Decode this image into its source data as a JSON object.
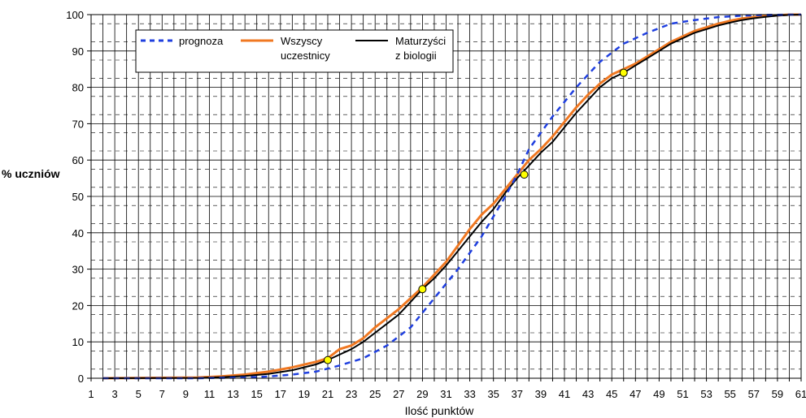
{
  "chart_data": {
    "type": "line",
    "xlabel": "Ilość punktów",
    "ylabel": "% uczniów",
    "xlim": [
      1,
      61
    ],
    "ylim": [
      0,
      100
    ],
    "x_ticks": [
      "1",
      "3",
      "5",
      "7",
      "9",
      "11",
      "13",
      "15",
      "17",
      "19",
      "21",
      "23",
      "25",
      "27",
      "29",
      "31",
      "33",
      "35",
      "37",
      "39",
      "41",
      "43",
      "45",
      "47",
      "49",
      "51",
      "53",
      "55",
      "57",
      "59",
      "61"
    ],
    "y_ticks": [
      "0",
      "10",
      "20",
      "30",
      "40",
      "50",
      "60",
      "70",
      "80",
      "90",
      "100"
    ],
    "grid": true,
    "legend_position": "top-left",
    "series": [
      {
        "name": "prognoza",
        "style": "dashed",
        "color": "#1f3fdf",
        "x": [
          2,
          10,
          14,
          16,
          18,
          20,
          22,
          24,
          26,
          28,
          30,
          32,
          34,
          36,
          37,
          38,
          40,
          42,
          44,
          46,
          48,
          50,
          52,
          54,
          56,
          58,
          60,
          61
        ],
        "y": [
          0,
          0,
          0.2,
          0.5,
          1,
          1.8,
          3.5,
          5.5,
          9,
          14,
          22,
          30,
          39,
          50,
          56,
          63,
          72,
          80,
          87,
          92,
          95,
          97.5,
          98.5,
          99.3,
          99.7,
          99.9,
          100,
          100
        ]
      },
      {
        "name": "Wszyscy uczestnicy",
        "style": "solid",
        "color": "#f07822",
        "x": [
          2,
          10,
          12,
          14,
          16,
          18,
          20,
          21,
          22,
          23,
          24,
          25,
          26,
          27,
          28,
          29,
          30,
          31,
          32,
          33,
          34,
          35,
          36,
          37,
          38,
          39,
          40,
          41,
          42,
          43,
          44,
          45,
          46,
          47,
          48,
          49,
          50,
          51,
          52,
          53,
          54,
          55,
          56,
          57,
          58,
          59,
          60,
          61
        ],
        "y": [
          0,
          0.2,
          0.5,
          1,
          1.8,
          3,
          4.5,
          5.5,
          8,
          9,
          11,
          14,
          16.5,
          19,
          22,
          25,
          28.5,
          32,
          36.5,
          41,
          45,
          48,
          52,
          56,
          60,
          63,
          66.5,
          70.5,
          74.5,
          78,
          81,
          83.5,
          85,
          86.5,
          88.5,
          90.5,
          92.5,
          94,
          95.5,
          96.5,
          97.5,
          98.3,
          98.9,
          99.3,
          99.6,
          99.8,
          100,
          100
        ]
      },
      {
        "name": "Maturzyści z biologii",
        "style": "solid",
        "color": "#000000",
        "x": [
          2,
          10,
          12,
          14,
          16,
          18,
          20,
          21,
          22,
          23,
          24,
          25,
          26,
          27,
          28,
          29,
          30,
          31,
          32,
          33,
          34,
          35,
          36,
          37,
          38,
          39,
          40,
          41,
          42,
          43,
          44,
          45,
          46,
          47,
          48,
          49,
          50,
          51,
          52,
          53,
          54,
          55,
          56,
          57,
          58,
          59,
          60,
          61
        ],
        "y": [
          0,
          0.1,
          0.3,
          0.6,
          1.2,
          2.2,
          3.8,
          5,
          6.5,
          8,
          10,
          12.5,
          15,
          17.5,
          21,
          24.5,
          27.5,
          31,
          35,
          39,
          43,
          46.5,
          51,
          55,
          58.5,
          62,
          65,
          69,
          73,
          76.5,
          80,
          82.5,
          84,
          86,
          88,
          90,
          92,
          93.5,
          95,
          96,
          97,
          97.8,
          98.5,
          99,
          99.4,
          99.7,
          99.9,
          100
        ]
      }
    ],
    "highlight_points": [
      {
        "x": 21,
        "y": 5
      },
      {
        "x": 29,
        "y": 24.5
      },
      {
        "x": 37.6,
        "y": 56
      },
      {
        "x": 46,
        "y": 84
      }
    ]
  },
  "legend": {
    "items": [
      {
        "label": "prognoza"
      },
      {
        "label": "Wszyscy uczestnicy"
      },
      {
        "label": "Maturzyści z biologii"
      }
    ]
  }
}
